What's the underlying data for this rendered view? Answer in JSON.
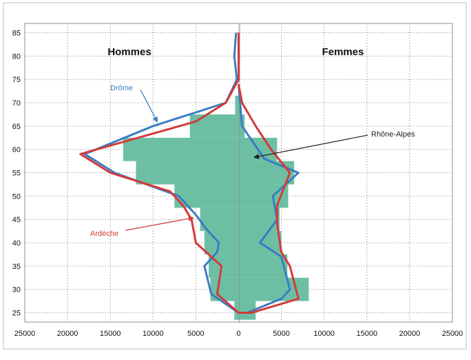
{
  "chart_data": {
    "type": "area",
    "title": "",
    "xlabel": "",
    "ylabel": "",
    "xlim": [
      -25000,
      25000
    ],
    "ylim": [
      23,
      87
    ],
    "x_ticks": [
      -25000,
      -20000,
      -15000,
      -10000,
      -5000,
      0,
      5000,
      10000,
      15000,
      20000,
      25000
    ],
    "x_tick_labels": [
      "25000",
      "20000",
      "15000",
      "10000",
      "5000",
      "0",
      "5000",
      "10000",
      "15000",
      "20000",
      "25000"
    ],
    "y_ticks": [
      25,
      30,
      35,
      40,
      45,
      50,
      55,
      60,
      65,
      70,
      75,
      80,
      85
    ],
    "y_tick_labels": [
      "25",
      "30",
      "35",
      "40",
      "45",
      "50",
      "55",
      "60",
      "65",
      "70",
      "75",
      "80",
      "85"
    ],
    "grid": true,
    "side_labels": {
      "left": "Hommes",
      "right": "Femmes"
    },
    "annotations": [
      {
        "text": "Drôme",
        "color": "#3a7cc2"
      },
      {
        "text": "Ardèche",
        "color": "#d43a3a"
      },
      {
        "text": "Rhône-Alpes",
        "color": "#222222"
      }
    ],
    "series": [
      {
        "name": "Rhône-Alpes",
        "kind": "stepped-area",
        "color": "#6dbfa3",
        "bands": [
          {
            "y0": 23.5,
            "y1": 27.5,
            "men": -500,
            "women": 2000
          },
          {
            "y0": 27.5,
            "y1": 32.5,
            "men": -3300,
            "women": 8200
          },
          {
            "y0": 32.5,
            "y1": 37.5,
            "men": -3500,
            "women": 5700
          },
          {
            "y0": 37.5,
            "y1": 42.5,
            "men": -4000,
            "women": 5000
          },
          {
            "y0": 42.5,
            "y1": 47.5,
            "men": -4500,
            "women": 4800
          },
          {
            "y0": 47.5,
            "y1": 52.5,
            "men": -7500,
            "women": 5800
          },
          {
            "y0": 52.5,
            "y1": 57.5,
            "men": -12000,
            "women": 6500
          },
          {
            "y0": 57.5,
            "y1": 62.5,
            "men": -13500,
            "women": 4500
          },
          {
            "y0": 62.5,
            "y1": 67.5,
            "men": -5700,
            "women": 700
          },
          {
            "y0": 67.5,
            "y1": 71.5,
            "men": -400,
            "women": 200
          }
        ]
      },
      {
        "name": "Drôme",
        "kind": "line",
        "color": "#3a7cc2",
        "points": [
          [
            -300,
            85
          ],
          [
            -500,
            80
          ],
          [
            -200,
            75
          ],
          [
            -1500,
            70
          ],
          [
            -10000,
            65
          ],
          [
            -18000,
            59
          ],
          [
            -14500,
            55
          ],
          [
            -7000,
            50
          ],
          [
            -5000,
            46
          ],
          [
            -3800,
            43
          ],
          [
            -2300,
            40
          ],
          [
            -2500,
            38
          ],
          [
            -4000,
            35
          ],
          [
            -3200,
            29
          ],
          [
            0,
            25
          ],
          [
            1000,
            25
          ],
          [
            5000,
            28
          ],
          [
            6000,
            30
          ],
          [
            5000,
            37
          ],
          [
            2500,
            40
          ],
          [
            4500,
            45
          ],
          [
            4000,
            50
          ],
          [
            7000,
            55
          ],
          [
            3000,
            58
          ],
          [
            400,
            65
          ],
          [
            0,
            74
          ]
        ]
      },
      {
        "name": "Ardèche",
        "kind": "line",
        "color": "#d43a3a",
        "points": [
          [
            0,
            85
          ],
          [
            0,
            75
          ],
          [
            -1500,
            70
          ],
          [
            -5000,
            66
          ],
          [
            -18500,
            59
          ],
          [
            -15000,
            55
          ],
          [
            -8000,
            51
          ],
          [
            -6500,
            48
          ],
          [
            -5500,
            45
          ],
          [
            -5000,
            40
          ],
          [
            -2000,
            35
          ],
          [
            -2500,
            29
          ],
          [
            0,
            25
          ],
          [
            1500,
            25
          ],
          [
            7000,
            28
          ],
          [
            6000,
            35
          ],
          [
            5000,
            38
          ],
          [
            4500,
            44
          ],
          [
            4500,
            48
          ],
          [
            6000,
            55
          ],
          [
            3800,
            60
          ],
          [
            2000,
            65
          ],
          [
            400,
            70
          ],
          [
            0,
            74
          ]
        ]
      }
    ]
  }
}
